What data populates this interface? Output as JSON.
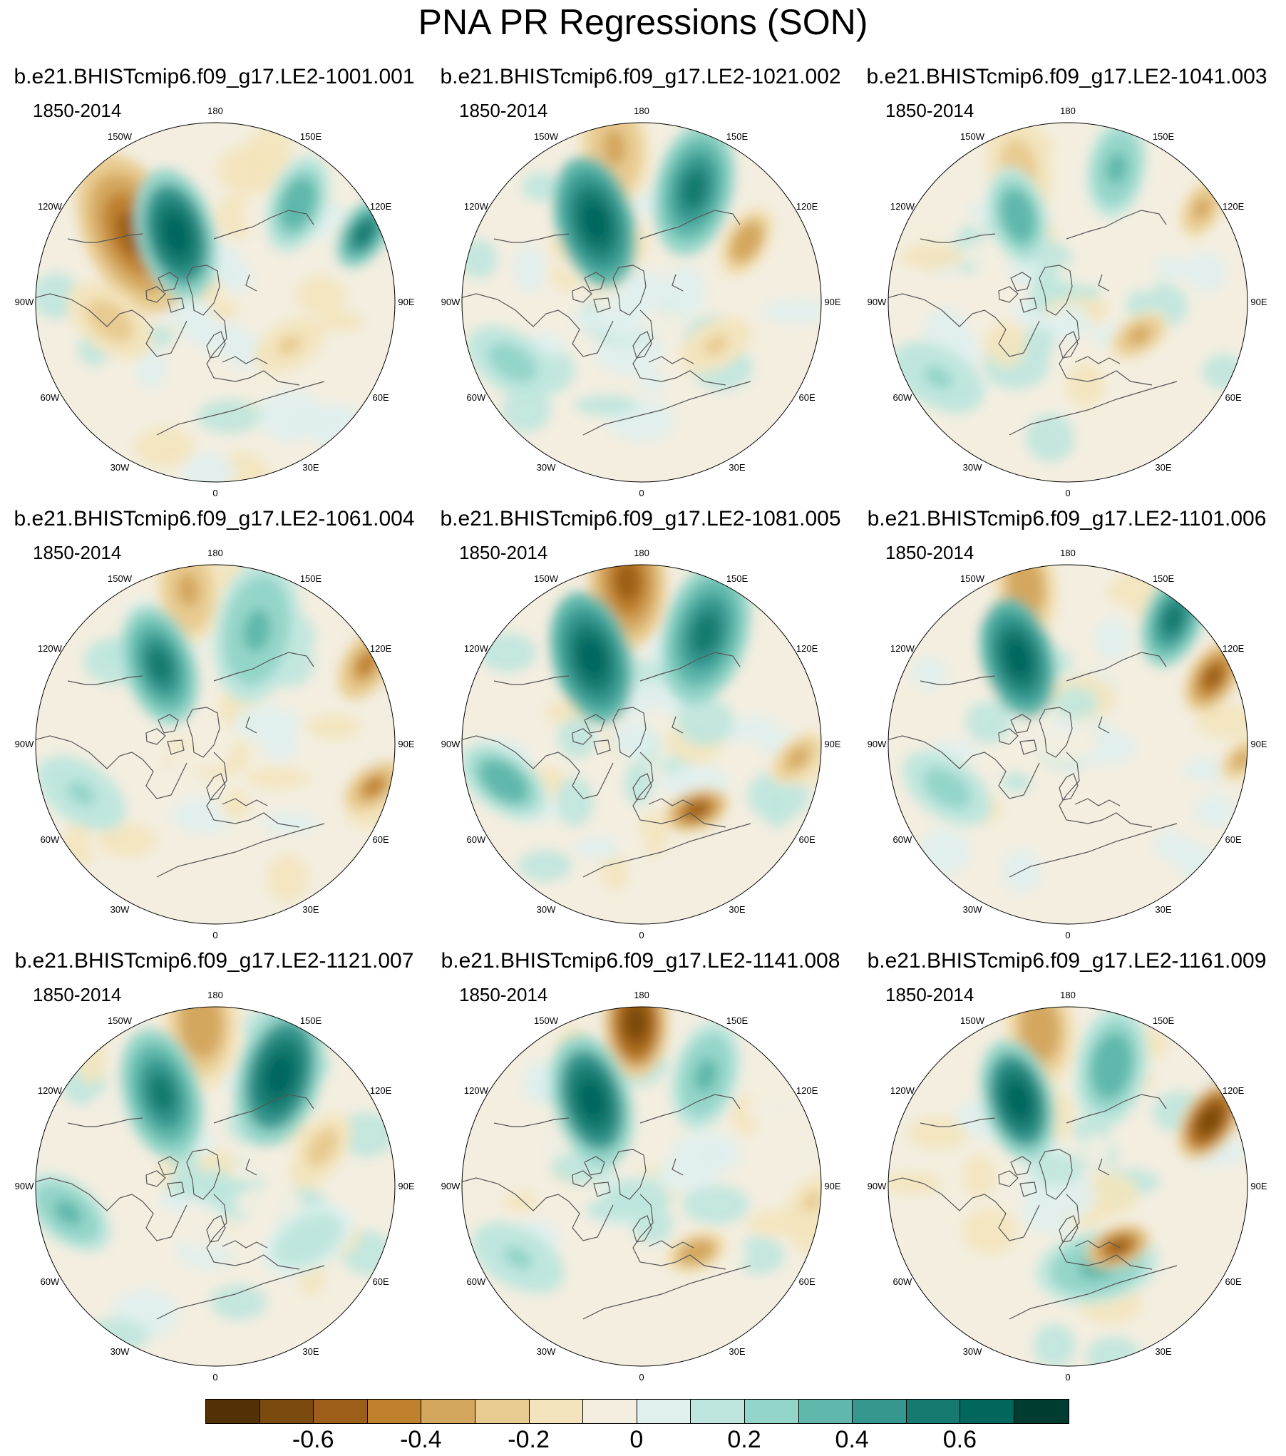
{
  "title": "PNA PR Regressions (SON)",
  "period_label": "1850-2014",
  "longitude_labels": [
    "180",
    "150E",
    "120E",
    "90E",
    "60E",
    "30E",
    "0",
    "30W",
    "60W",
    "90W",
    "120W",
    "150W"
  ],
  "panels": [
    {
      "case": "b.e21.BHISTcmip6.f09_g17.LE2-1001.001"
    },
    {
      "case": "b.e21.BHISTcmip6.f09_g17.LE2-1021.002"
    },
    {
      "case": "b.e21.BHISTcmip6.f09_g17.LE2-1041.003"
    },
    {
      "case": "b.e21.BHISTcmip6.f09_g17.LE2-1061.004"
    },
    {
      "case": "b.e21.BHISTcmip6.f09_g17.LE2-1081.005"
    },
    {
      "case": "b.e21.BHISTcmip6.f09_g17.LE2-1101.006"
    },
    {
      "case": "b.e21.BHISTcmip6.f09_g17.LE2-1121.007"
    },
    {
      "case": "b.e21.BHISTcmip6.f09_g17.LE2-1141.008"
    },
    {
      "case": "b.e21.BHISTcmip6.f09_g17.LE2-1161.009"
    }
  ],
  "colorbar": {
    "colors": [
      "#543005",
      "#7a4a0f",
      "#9c5e18",
      "#bf812d",
      "#d4a75f",
      "#e8cb90",
      "#f3e4bd",
      "#f3eee0",
      "#e0f0ee",
      "#bfe6de",
      "#94d5c9",
      "#5fb8ab",
      "#35978f",
      "#167a70",
      "#01665e",
      "#003c30"
    ],
    "tick_labels": [
      "-0.6",
      "-0.4",
      "-0.2",
      "0",
      "0.2",
      "0.4",
      "0.6"
    ],
    "tick_values": [
      -0.6,
      -0.4,
      -0.2,
      0,
      0.2,
      0.4,
      0.6
    ],
    "range": [
      -0.7,
      0.7
    ]
  }
}
